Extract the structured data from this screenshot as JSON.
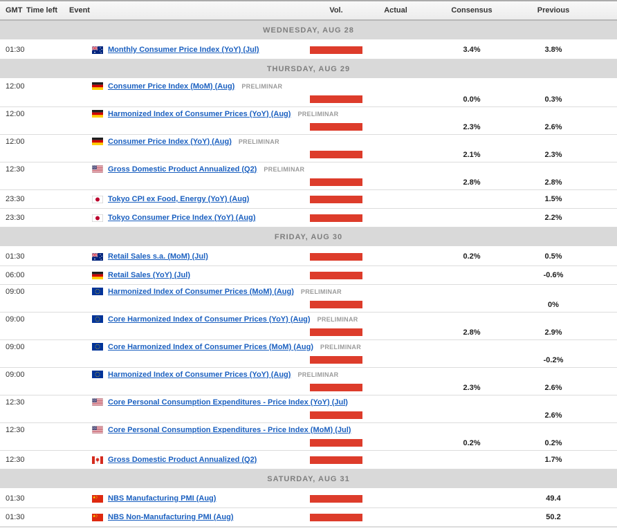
{
  "header": {
    "gmt": "GMT",
    "time_left": "Time left",
    "event": "Event",
    "vol": "Vol.",
    "actual": "Actual",
    "consensus": "Consensus",
    "previous": "Previous"
  },
  "colors": {
    "volatility_bar": "#dd3c2b",
    "event_link": "#1b60c0",
    "date_row_bg": "#d9d9d9"
  },
  "sections": [
    {
      "date": "WEDNESDAY, AUG 28",
      "rows": [
        {
          "time": "01:30",
          "country": "AU",
          "event": "Monthly Consumer Price Index (YoY) (Jul)",
          "preliminary": "",
          "actual": "",
          "consensus": "3.4%",
          "previous": "3.8%"
        }
      ]
    },
    {
      "date": "THURSDAY, AUG 29",
      "rows": [
        {
          "time": "12:00",
          "country": "DE",
          "event": "Consumer Price Index (MoM) (Aug)",
          "preliminary": "PRELIMINAR",
          "actual": "",
          "consensus": "0.0%",
          "previous": "0.3%"
        },
        {
          "time": "12:00",
          "country": "DE",
          "event": "Harmonized Index of Consumer Prices (YoY) (Aug)",
          "preliminary": "PRELIMINAR",
          "actual": "",
          "consensus": "2.3%",
          "previous": "2.6%"
        },
        {
          "time": "12:00",
          "country": "DE",
          "event": "Consumer Price Index (YoY) (Aug)",
          "preliminary": "PRELIMINAR",
          "actual": "",
          "consensus": "2.1%",
          "previous": "2.3%"
        },
        {
          "time": "12:30",
          "country": "US",
          "event": "Gross Domestic Product Annualized (Q2)",
          "preliminary": "PRELIMINAR",
          "actual": "",
          "consensus": "2.8%",
          "previous": "2.8%"
        },
        {
          "time": "23:30",
          "country": "JP",
          "event": "Tokyo CPI ex Food, Energy (YoY) (Aug)",
          "preliminary": "",
          "actual": "",
          "consensus": "",
          "previous": "1.5%"
        },
        {
          "time": "23:30",
          "country": "JP",
          "event": "Tokyo Consumer Price Index (YoY) (Aug)",
          "preliminary": "",
          "actual": "",
          "consensus": "",
          "previous": "2.2%"
        }
      ]
    },
    {
      "date": "FRIDAY, AUG 30",
      "rows": [
        {
          "time": "01:30",
          "country": "AU",
          "event": "Retail Sales s.a. (MoM) (Jul)",
          "preliminary": "",
          "actual": "",
          "consensus": "0.2%",
          "previous": "0.5%"
        },
        {
          "time": "06:00",
          "country": "DE",
          "event": "Retail Sales (YoY) (Jul)",
          "preliminary": "",
          "actual": "",
          "consensus": "",
          "previous": "-0.6%"
        },
        {
          "time": "09:00",
          "country": "EU",
          "event": "Harmonized Index of Consumer Prices (MoM) (Aug)",
          "preliminary": "PRELIMINAR",
          "actual": "",
          "consensus": "",
          "previous": "0%"
        },
        {
          "time": "09:00",
          "country": "EU",
          "event": "Core Harmonized Index of Consumer Prices (YoY) (Aug)",
          "preliminary": "PRELIMINAR",
          "actual": "",
          "consensus": "2.8%",
          "previous": "2.9%"
        },
        {
          "time": "09:00",
          "country": "EU",
          "event": "Core Harmonized Index of Consumer Prices (MoM) (Aug)",
          "preliminary": "PRELIMINAR",
          "actual": "",
          "consensus": "",
          "previous": "-0.2%"
        },
        {
          "time": "09:00",
          "country": "EU",
          "event": "Harmonized Index of Consumer Prices (YoY) (Aug)",
          "preliminary": "PRELIMINAR",
          "actual": "",
          "consensus": "2.3%",
          "previous": "2.6%"
        },
        {
          "time": "12:30",
          "country": "US",
          "event": "Core Personal Consumption Expenditures - Price Index (YoY) (Jul)",
          "preliminary": "",
          "actual": "",
          "consensus": "",
          "previous": "2.6%"
        },
        {
          "time": "12:30",
          "country": "US",
          "event": "Core Personal Consumption Expenditures - Price Index (MoM) (Jul)",
          "preliminary": "",
          "actual": "",
          "consensus": "0.2%",
          "previous": "0.2%"
        },
        {
          "time": "12:30",
          "country": "CA",
          "event": "Gross Domestic Product Annualized (Q2)",
          "preliminary": "",
          "actual": "",
          "consensus": "",
          "previous": "1.7%"
        }
      ]
    },
    {
      "date": "SATURDAY, AUG 31",
      "rows": [
        {
          "time": "01:30",
          "country": "CN",
          "event": "NBS Manufacturing PMI (Aug)",
          "preliminary": "",
          "actual": "",
          "consensus": "",
          "previous": "49.4"
        },
        {
          "time": "01:30",
          "country": "CN",
          "event": "NBS Non-Manufacturing PMI (Aug)",
          "preliminary": "",
          "actual": "",
          "consensus": "",
          "previous": "50.2"
        }
      ]
    }
  ]
}
